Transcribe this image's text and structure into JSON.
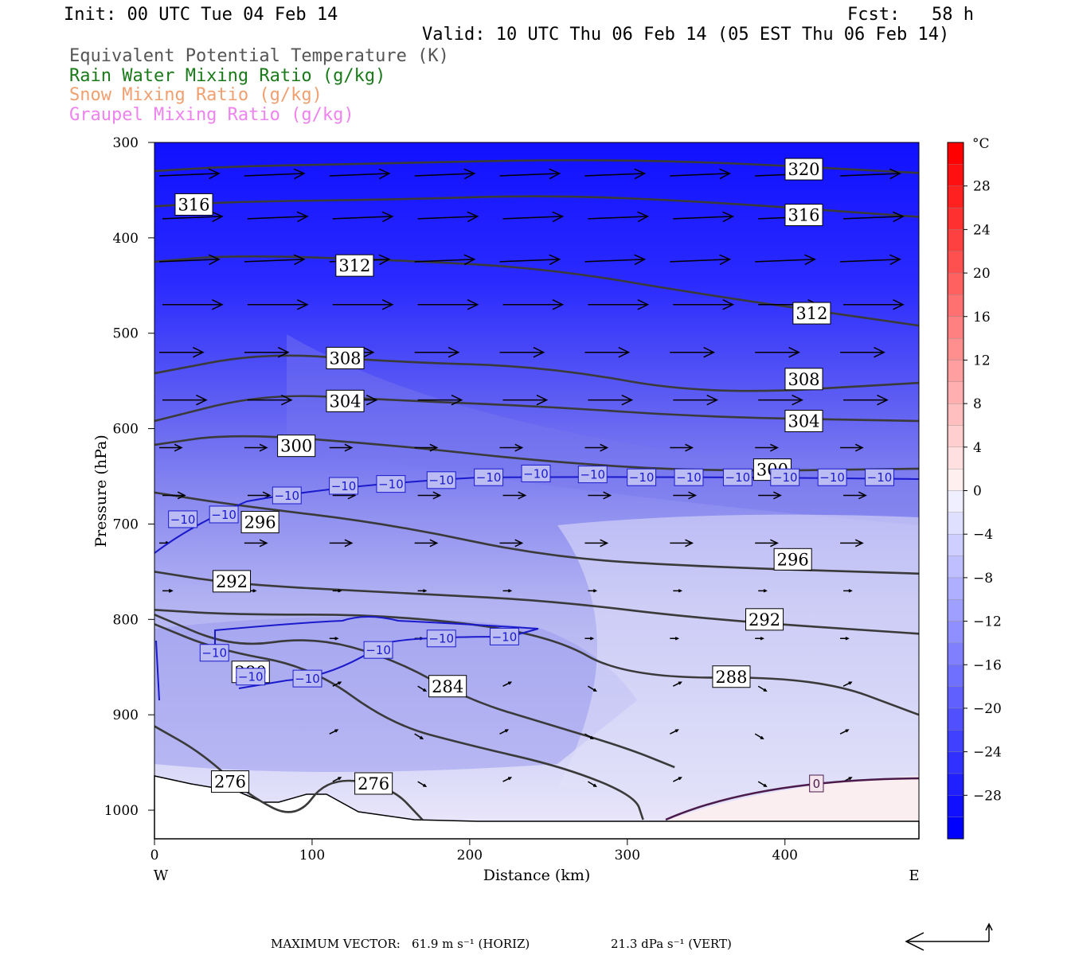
{
  "header": {
    "init": "Init: 00 UTC Tue 04 Feb 14",
    "fcst": "Fcst:   58 h",
    "valid": "Valid: 10 UTC Thu 06 Feb 14 (05 EST Thu 06 Feb 14)"
  },
  "legend": {
    "items": [
      {
        "label": "Equivalent Potential Temperature (K)",
        "color": "#555555"
      },
      {
        "label": "Rain Water Mixing Ratio (g/kg)",
        "color": "#1a7a1a"
      },
      {
        "label": "Snow Mixing Ratio (g/kg)",
        "color": "#f0a070"
      },
      {
        "label": "Graupel Mixing Ratio (g/kg)",
        "color": "#ee82ee"
      }
    ]
  },
  "colorbar": {
    "unit": "°C",
    "tick_labels": [
      "28",
      "24",
      "20",
      "16",
      "12",
      "8",
      "4",
      "0",
      "−4",
      "−8",
      "−12",
      "−16",
      "−20",
      "−24",
      "−28"
    ],
    "tick_values": [
      28,
      24,
      20,
      16,
      12,
      8,
      4,
      0,
      -4,
      -8,
      -12,
      -16,
      -20,
      -24,
      -28
    ],
    "range": [
      -32,
      32
    ],
    "cold_color": "#0000ff",
    "warm_color": "#ff0000"
  },
  "axes": {
    "ylabel": "Pressure (hPa)",
    "xlabel": "Distance (km)",
    "x_ticks": [
      "0",
      "100",
      "200",
      "300",
      "400"
    ],
    "y_ticks": [
      "300",
      "400",
      "500",
      "600",
      "700",
      "800",
      "900",
      "1000"
    ],
    "west_label": "W",
    "east_label": "E"
  },
  "chart_data": {
    "type": "cross-section contour",
    "xlim": [
      0,
      485
    ],
    "ylim": [
      1030,
      300
    ],
    "y_scale": "linear pressure (reversed)",
    "shading_field": "temperature (°C)",
    "theta_e_contours": [
      {
        "label": "320",
        "points": [
          [
            0,
            330
          ],
          [
            50,
            325
          ],
          [
            150,
            322
          ],
          [
            250,
            318
          ],
          [
            350,
            320
          ],
          [
            485,
            332
          ]
        ],
        "label_at": [
          [
            412,
            328
          ]
        ]
      },
      {
        "label": "316",
        "points": [
          [
            0,
            367
          ],
          [
            50,
            362
          ],
          [
            150,
            360
          ],
          [
            250,
            355
          ],
          [
            350,
            362
          ],
          [
            485,
            378
          ]
        ],
        "label_at": [
          [
            25,
            365
          ],
          [
            412,
            376
          ]
        ]
      },
      {
        "label": "312",
        "points": [
          [
            0,
            425
          ],
          [
            50,
            418
          ],
          [
            150,
            423
          ],
          [
            250,
            432
          ],
          [
            350,
            460
          ],
          [
            485,
            492
          ]
        ],
        "label_at": [
          [
            127,
            429
          ],
          [
            417,
            479
          ]
        ]
      },
      {
        "label": "308",
        "points": [
          [
            0,
            542
          ],
          [
            70,
            520
          ],
          [
            150,
            530
          ],
          [
            250,
            535
          ],
          [
            350,
            565
          ],
          [
            485,
            552
          ]
        ],
        "label_at": [
          [
            121,
            526
          ],
          [
            412,
            548
          ]
        ]
      },
      {
        "label": "304",
        "points": [
          [
            0,
            592
          ],
          [
            70,
            563
          ],
          [
            150,
            570
          ],
          [
            250,
            577
          ],
          [
            350,
            588
          ],
          [
            485,
            592
          ]
        ],
        "label_at": [
          [
            121,
            571
          ],
          [
            412,
            592
          ]
        ]
      },
      {
        "label": "300",
        "points": [
          [
            0,
            617
          ],
          [
            50,
            605
          ],
          [
            150,
            617
          ],
          [
            250,
            635
          ],
          [
            350,
            645
          ],
          [
            485,
            642
          ]
        ],
        "label_at": [
          [
            90,
            618
          ],
          [
            392,
            643
          ]
        ]
      },
      {
        "label": "296",
        "points": [
          [
            0,
            667
          ],
          [
            50,
            680
          ],
          [
            150,
            700
          ],
          [
            250,
            735
          ],
          [
            350,
            745
          ],
          [
            485,
            752
          ]
        ],
        "label_at": [
          [
            67,
            698
          ],
          [
            405,
            737
          ]
        ]
      },
      {
        "label": "292",
        "points": [
          [
            0,
            750
          ],
          [
            50,
            763
          ],
          [
            150,
            772
          ],
          [
            250,
            780
          ],
          [
            350,
            800
          ],
          [
            485,
            815
          ]
        ],
        "label_at": [
          [
            49,
            760
          ],
          [
            387,
            800
          ]
        ]
      },
      {
        "label": "288",
        "points": [
          [
            0,
            790
          ],
          [
            50,
            795
          ],
          [
            150,
            795
          ],
          [
            250,
            815
          ],
          [
            300,
            862
          ],
          [
            420,
            860
          ],
          [
            485,
            900
          ]
        ],
        "label_at": [
          [
            366,
            860
          ]
        ]
      },
      {
        "label": "284",
        "points": [
          [
            0,
            795
          ],
          [
            50,
            830
          ],
          [
            100,
            818
          ],
          [
            150,
            840
          ],
          [
            200,
            885
          ],
          [
            250,
            910
          ],
          [
            300,
            935
          ],
          [
            330,
            955
          ]
        ],
        "label_at": [
          [
            186,
            870
          ]
        ]
      },
      {
        "label": "280",
        "points": [
          [
            0,
            805
          ],
          [
            40,
            832
          ],
          [
            100,
            850
          ],
          [
            150,
            910
          ],
          [
            200,
            932
          ],
          [
            260,
            955
          ],
          [
            305,
            985
          ],
          [
            310,
            1010
          ]
        ],
        "label_at": [
          [
            61,
            855
          ]
        ]
      },
      {
        "label": "276",
        "points": [
          [
            0,
            912
          ],
          [
            30,
            940
          ],
          [
            60,
            985
          ],
          [
            90,
            1010
          ],
          [
            110,
            965
          ],
          [
            150,
            975
          ],
          [
            170,
            1010
          ]
        ],
        "label_at": [
          [
            48,
            970
          ],
          [
            139,
            972
          ]
        ]
      }
    ],
    "temperature_contour_minus10_labels": [
      {
        "label": "−10",
        "at": [
          [
            18,
            695
          ],
          [
            44,
            690
          ],
          [
            84,
            670
          ],
          [
            120,
            660
          ],
          [
            150,
            658
          ],
          [
            182,
            654
          ],
          [
            212,
            651
          ],
          [
            242,
            647
          ],
          [
            278,
            648
          ],
          [
            309,
            651
          ],
          [
            339,
            651
          ],
          [
            370,
            651
          ],
          [
            400,
            651
          ],
          [
            430,
            651
          ],
          [
            460,
            651
          ]
        ]
      },
      {
        "label": "−10",
        "at": [
          [
            38,
            835
          ],
          [
            61,
            860
          ],
          [
            97,
            862
          ],
          [
            142,
            832
          ],
          [
            182,
            820
          ],
          [
            222,
            818
          ]
        ]
      }
    ],
    "temperature_contour_0": {
      "label": "0",
      "label_at": [
        [
          420,
          972
        ]
      ]
    }
  },
  "footer": {
    "max_vector": "MAXIMUM VECTOR:",
    "horiz": "61.9 m s⁻¹ (HORIZ)",
    "vert": "21.3 dPa s⁻¹ (VERT)"
  }
}
